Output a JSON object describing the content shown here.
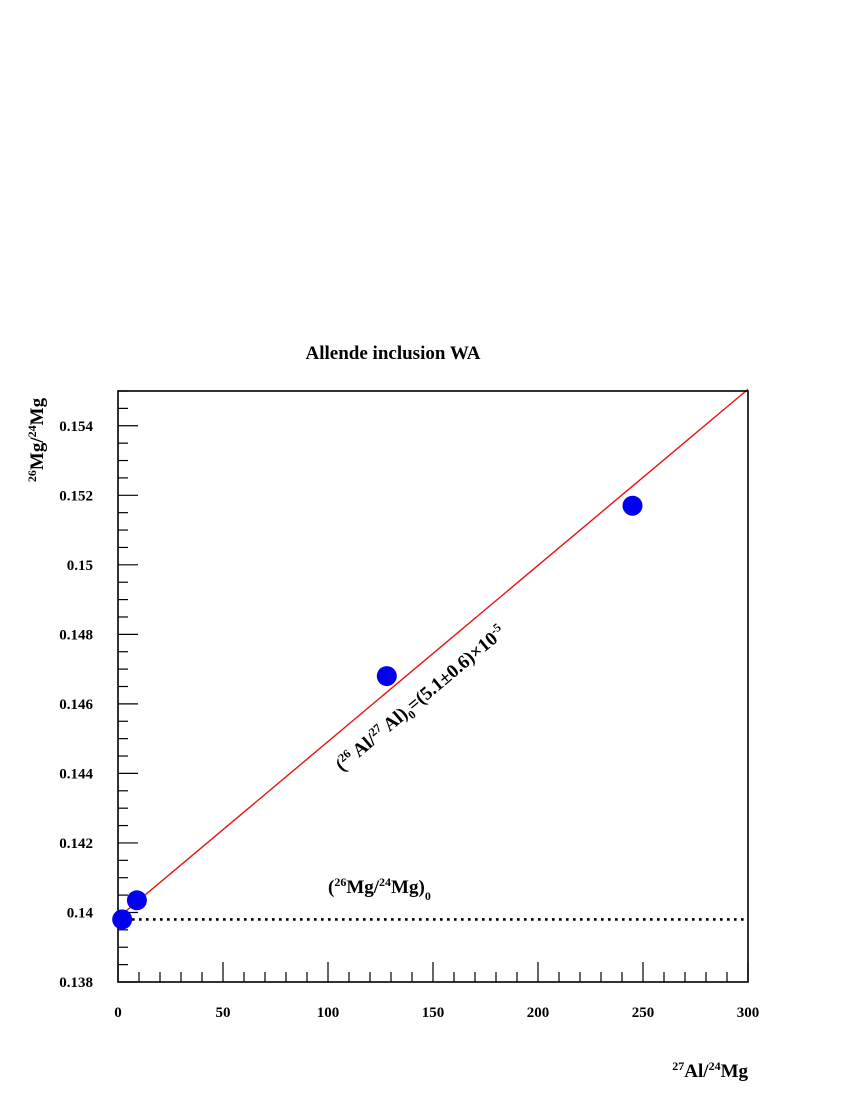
{
  "chart_data": {
    "type": "scatter",
    "title": "Allende inclusion WA",
    "xlabel": {
      "sup1": "27",
      "mid": "Al/",
      "sup2": "24",
      "end": "Mg"
    },
    "ylabel": {
      "sup1": "26",
      "mid": "Mg/",
      "sup2": "24",
      "end": "Mg"
    },
    "xlim": [
      0,
      300
    ],
    "ylim": [
      0.138,
      0.155
    ],
    "x_ticks": [
      {
        "v": 0,
        "label": "0"
      },
      {
        "v": 50,
        "label": "50"
      },
      {
        "v": 100,
        "label": "100"
      },
      {
        "v": 150,
        "label": "150"
      },
      {
        "v": 200,
        "label": "200"
      },
      {
        "v": 250,
        "label": "250"
      },
      {
        "v": 300,
        "label": "300"
      }
    ],
    "y_ticks": [
      {
        "v": 0.138,
        "label": "0.138"
      },
      {
        "v": 0.14,
        "label": "0.14"
      },
      {
        "v": 0.142,
        "label": "0.142"
      },
      {
        "v": 0.144,
        "label": "0.144"
      },
      {
        "v": 0.146,
        "label": "0.146"
      },
      {
        "v": 0.148,
        "label": "0.148"
      },
      {
        "v": 0.15,
        "label": "0.15"
      },
      {
        "v": 0.152,
        "label": "0.152"
      },
      {
        "v": 0.154,
        "label": "0.154"
      }
    ],
    "points": [
      {
        "x": 2,
        "y": 0.1398
      },
      {
        "x": 9,
        "y": 0.14035
      },
      {
        "x": 128,
        "y": 0.1468
      },
      {
        "x": 245,
        "y": 0.1517
      }
    ],
    "fit_line": {
      "x": [
        0,
        300
      ],
      "y": [
        0.13985,
        0.15505
      ],
      "color": "#ee1111"
    },
    "reference_line": {
      "y": 0.1398,
      "style": "dotted"
    },
    "annotations": {
      "slope": {
        "open": "(",
        "sup1": "26",
        "a1": " Al/",
        "sup2": "27",
        "a2": " Al)",
        "sub": "0",
        "rest": "=(5.1±0.6)×10",
        "exp": "-5"
      },
      "initial": {
        "open": "(",
        "sup1": "26",
        "a1": "Mg/",
        "sup2": "24",
        "a2": "Mg)",
        "sub": "0"
      }
    },
    "colors": {
      "points": "#0000ee",
      "axes": "#000000"
    }
  }
}
